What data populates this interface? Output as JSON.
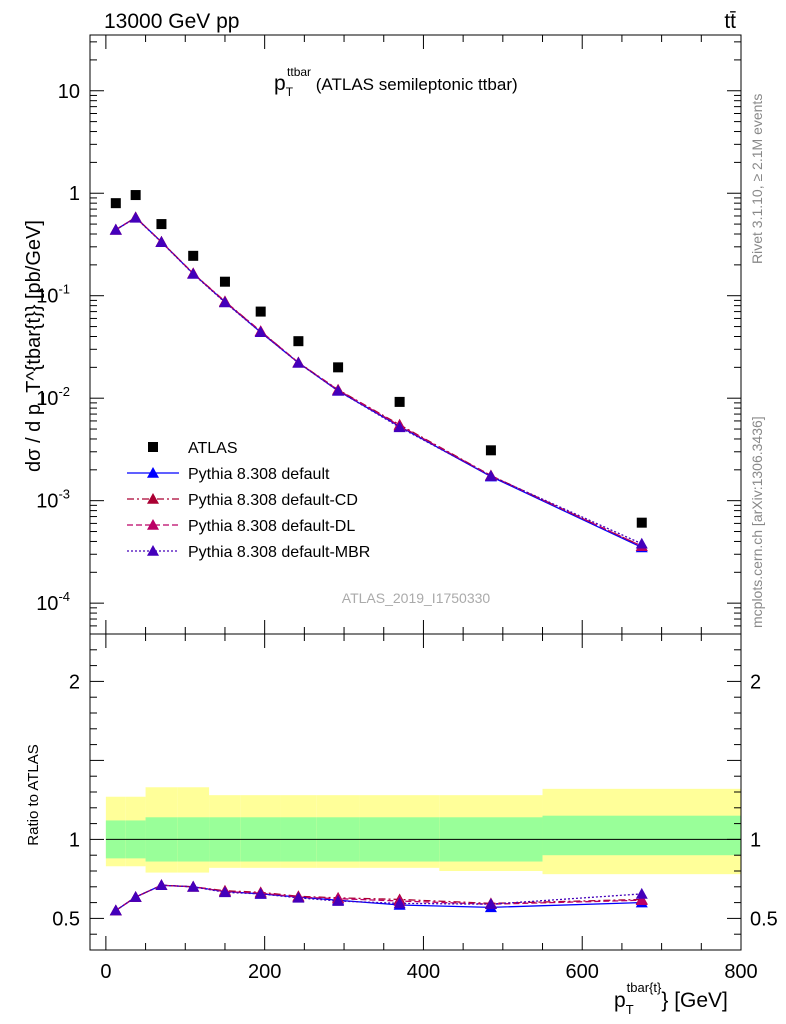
{
  "header": {
    "left": "13000 GeV pp",
    "right": "tt̄",
    "right_side_top": "Rivet 3.1.10, ≥ 2.1M events",
    "right_side_bottom": "mcplots.cern.ch [arXiv:1306.3436]"
  },
  "main_title": {
    "base": "p",
    "sub": "T",
    "sup": "ttbar",
    "rest": " (ATLAS semileptonic ttbar)"
  },
  "analysis_label": "ATLAS_2019_I1750330",
  "axes": {
    "ylabel_main": "dσ / d p_T^{tbar{t}} [pb/GeV]",
    "ylabel_ratio": "Ratio to ATLAS",
    "xlabel_base": "p",
    "xlabel_sub": "T",
    "xlabel_sup": "tbar{t}",
    "xlabel_rest": "} [GeV]"
  },
  "colors": {
    "data": "#000000",
    "default": "#0000ff",
    "cd": "#aa0033",
    "dl": "#bb0066",
    "mbr": "#4400bb",
    "band_inner": "#99ff99",
    "band_outer": "#ffff99"
  },
  "legend": [
    {
      "key": "data",
      "label": "ATLAS",
      "style": "marker-square"
    },
    {
      "key": "default",
      "label": "Pythia 8.308 default",
      "style": "solid"
    },
    {
      "key": "cd",
      "label": "Pythia 8.308 default-CD",
      "style": "dashdot"
    },
    {
      "key": "dl",
      "label": "Pythia 8.308 default-DL",
      "style": "dashed"
    },
    {
      "key": "mbr",
      "label": "Pythia 8.308 default-MBR",
      "style": "dotted"
    }
  ],
  "chart_data": [
    {
      "type": "scatter",
      "panel": "main",
      "xlim": [
        -20,
        800
      ],
      "ylim": [
        5e-05,
        35
      ],
      "yscale": "log",
      "x_ticks": [
        0,
        200,
        400,
        600,
        800
      ],
      "y_ticks": [
        "10^{-4}",
        "10^{-3}",
        "10^{-2}",
        "10^{-1}",
        "1",
        "10"
      ],
      "x": [
        12.5,
        37.5,
        70,
        110,
        150,
        195,
        242.5,
        292.5,
        370,
        485,
        675
      ],
      "series": [
        {
          "name": "ATLAS",
          "key": "data",
          "values": [
            0.8,
            0.96,
            0.5,
            0.245,
            0.137,
            0.07,
            0.036,
            0.02,
            0.0092,
            0.0031,
            0.00061
          ]
        },
        {
          "name": "Pythia 8.308 default",
          "key": "default",
          "values": [
            0.44,
            0.58,
            0.335,
            0.164,
            0.087,
            0.044,
            0.0222,
            0.0118,
            0.0053,
            0.00172,
            0.00035
          ]
        },
        {
          "name": "Pythia 8.308 default-CD",
          "key": "cd",
          "values": [
            0.44,
            0.58,
            0.335,
            0.165,
            0.088,
            0.045,
            0.0223,
            0.0121,
            0.0055,
            0.00176,
            0.00036
          ]
        },
        {
          "name": "Pythia 8.308 default-DL",
          "key": "dl",
          "values": [
            0.44,
            0.58,
            0.334,
            0.165,
            0.087,
            0.045,
            0.0222,
            0.012,
            0.0054,
            0.00175,
            0.00036
          ]
        },
        {
          "name": "Pythia 8.308 default-MBR",
          "key": "mbr",
          "values": [
            0.44,
            0.575,
            0.333,
            0.163,
            0.086,
            0.044,
            0.0221,
            0.0118,
            0.0052,
            0.00174,
            0.00038
          ]
        }
      ]
    },
    {
      "type": "line",
      "panel": "ratio",
      "xlim": [
        -20,
        800
      ],
      "ylim": [
        0.3,
        2.3
      ],
      "x_ticks": [
        0,
        200,
        400,
        600,
        800
      ],
      "y_ticks": [
        0.5,
        1,
        2
      ],
      "x": [
        12.5,
        37.5,
        70,
        110,
        150,
        195,
        242.5,
        292.5,
        370,
        485,
        675
      ],
      "bins": [
        [
          0,
          25
        ],
        [
          25,
          50
        ],
        [
          50,
          90
        ],
        [
          90,
          130
        ],
        [
          130,
          170
        ],
        [
          170,
          220
        ],
        [
          220,
          265
        ],
        [
          265,
          320
        ],
        [
          320,
          420
        ],
        [
          420,
          550
        ],
        [
          550,
          800
        ]
      ],
      "band_inner": [
        [
          0.88,
          1.12
        ],
        [
          0.88,
          1.12
        ],
        [
          0.86,
          1.14
        ],
        [
          0.86,
          1.14
        ],
        [
          0.86,
          1.14
        ],
        [
          0.86,
          1.14
        ],
        [
          0.86,
          1.14
        ],
        [
          0.86,
          1.14
        ],
        [
          0.86,
          1.14
        ],
        [
          0.86,
          1.14
        ],
        [
          0.9,
          1.15
        ]
      ],
      "band_outer": [
        [
          0.83,
          1.27
        ],
        [
          0.83,
          1.27
        ],
        [
          0.79,
          1.33
        ],
        [
          0.79,
          1.33
        ],
        [
          0.82,
          1.28
        ],
        [
          0.82,
          1.28
        ],
        [
          0.82,
          1.28
        ],
        [
          0.82,
          1.28
        ],
        [
          0.82,
          1.28
        ],
        [
          0.8,
          1.28
        ],
        [
          0.78,
          1.32
        ]
      ],
      "series": [
        {
          "name": "Pythia 8.308 default",
          "key": "default",
          "values": [
            0.55,
            0.635,
            0.71,
            0.7,
            0.67,
            0.655,
            0.635,
            0.615,
            0.585,
            0.57,
            0.6
          ],
          "err": [
            0,
            0,
            0,
            0,
            0,
            0,
            0,
            0,
            0,
            0.015,
            0.025
          ]
        },
        {
          "name": "Pythia 8.308 default-CD",
          "key": "cd",
          "values": [
            0.55,
            0.635,
            0.71,
            0.7,
            0.675,
            0.665,
            0.64,
            0.63,
            0.62,
            0.595,
            0.62
          ],
          "err": [
            0,
            0,
            0,
            0,
            0,
            0,
            0,
            0,
            0,
            0.015,
            0.025
          ]
        },
        {
          "name": "Pythia 8.308 default-DL",
          "key": "dl",
          "values": [
            0.55,
            0.635,
            0.71,
            0.7,
            0.67,
            0.66,
            0.635,
            0.625,
            0.61,
            0.59,
            0.615
          ],
          "err": [
            0,
            0,
            0,
            0,
            0,
            0,
            0,
            0,
            0,
            0.015,
            0.025
          ]
        },
        {
          "name": "Pythia 8.308 default-MBR",
          "key": "mbr",
          "values": [
            0.55,
            0.635,
            0.71,
            0.7,
            0.665,
            0.655,
            0.63,
            0.61,
            0.595,
            0.59,
            0.655
          ],
          "err": [
            0,
            0,
            0,
            0,
            0,
            0,
            0,
            0,
            0,
            0.015,
            0.025
          ]
        }
      ]
    }
  ]
}
